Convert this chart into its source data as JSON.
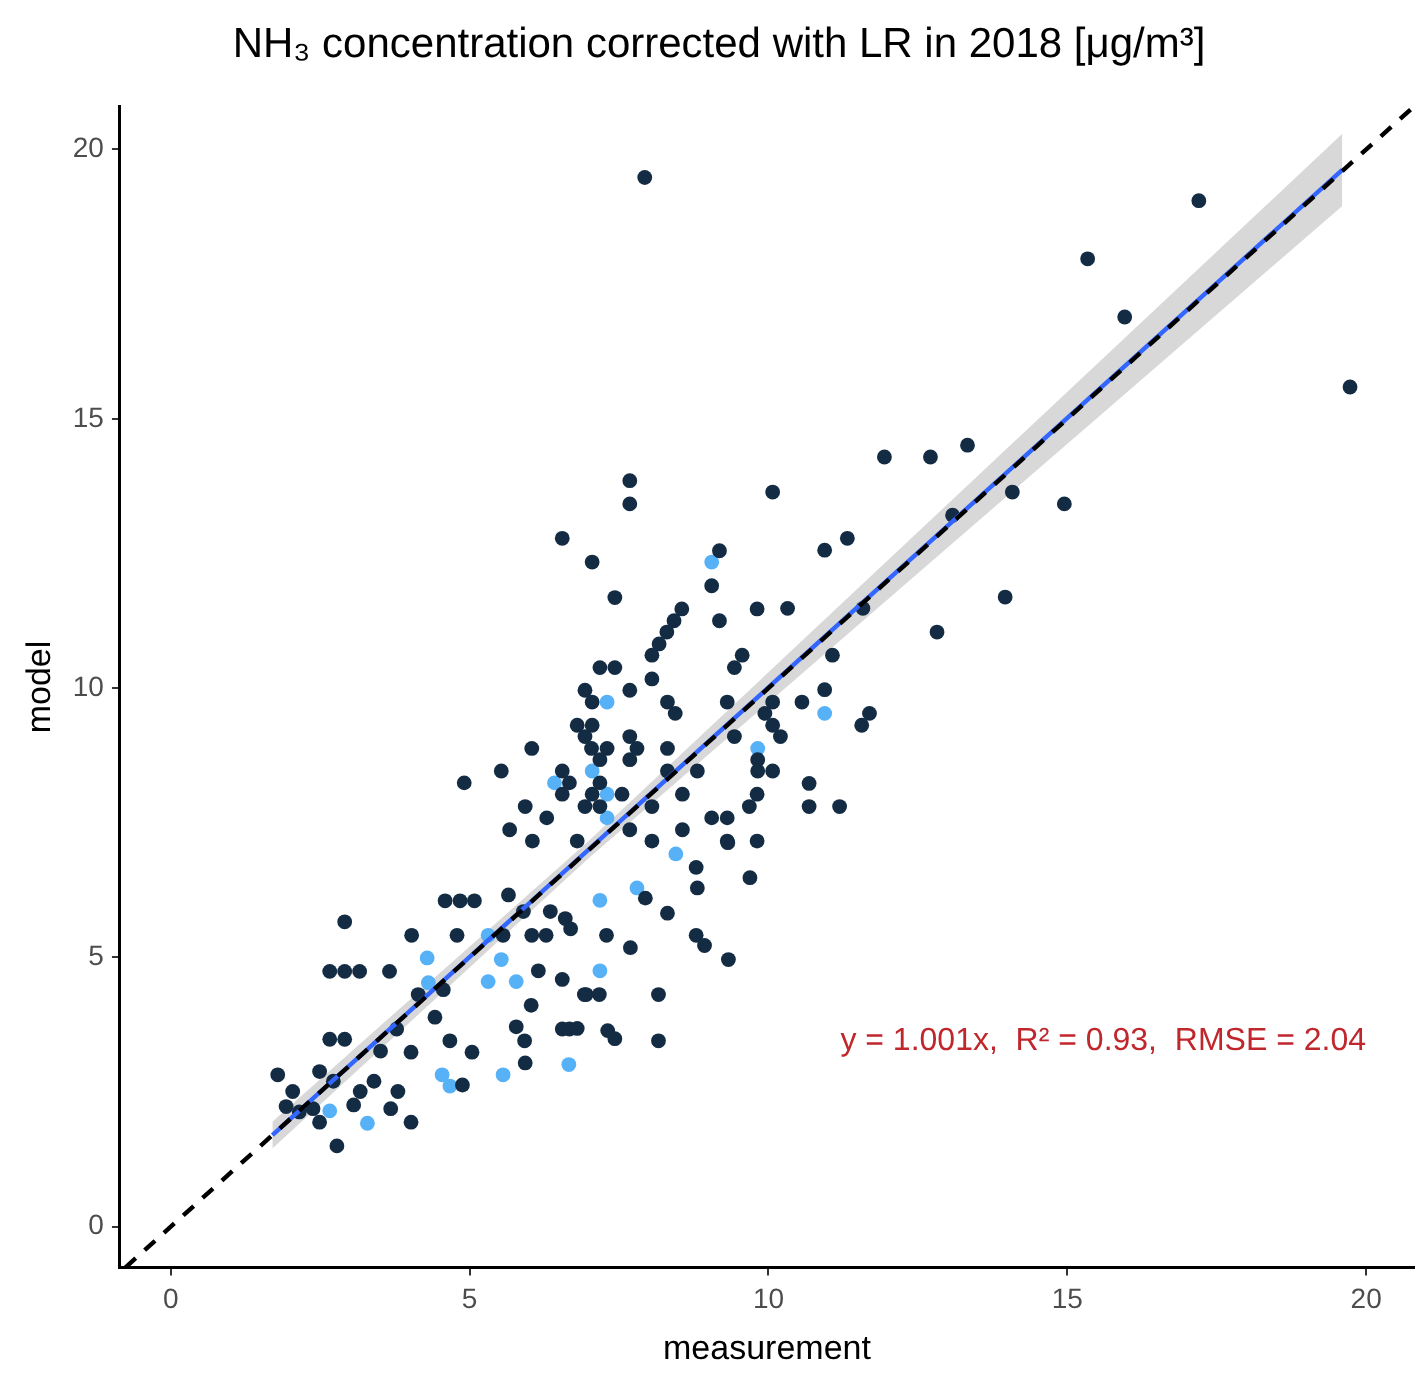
{
  "chart_data": {
    "type": "scatter",
    "title": "NH₃ concentration corrected with LR in 2018 [μg/m³]",
    "xlabel": "measurement",
    "ylabel": "model",
    "xlim": [
      -0.85,
      20.8
    ],
    "ylim": [
      -0.76,
      20.8
    ],
    "xticks": [
      0,
      5,
      10,
      15,
      20
    ],
    "yticks": [
      0,
      5,
      10,
      15,
      20
    ],
    "grid": false,
    "legend": false,
    "marker": "circle",
    "annotations": [
      "y = 1.001x,  R² = 0.93,  RMSE = 2.04"
    ],
    "series": [
      {
        "type": "line",
        "color": "#000000",
        "line_style": "dashed",
        "marker": "none",
        "x": [
          -0.76,
          20.8
        ],
        "values": [
          -0.76,
          20.8
        ]
      },
      {
        "type": "line",
        "color": "#3366ff",
        "line_style": "solid",
        "marker": "none",
        "x": [
          1.7,
          7,
          19.6
        ],
        "values": [
          1.7,
          7.01,
          19.62
        ],
        "lower": [
          1.45,
          6.85,
          18.95
        ],
        "upper": [
          1.95,
          7.17,
          20.29
        ]
      },
      {
        "color": "#132b43",
        "x": [
          17.2,
          15.34,
          15.96,
          19.73,
          11.94,
          12.71,
          13.33,
          14.08,
          14.95,
          13.08,
          10.94,
          11.32,
          10.32,
          11.58,
          13.96,
          12.82,
          11.07,
          10.94,
          10.56,
          11.69,
          11.56,
          10.2,
          10.68,
          11.19,
          7.93,
          7.68,
          7.68,
          10.07,
          6.55,
          7.05,
          9.18,
          9.05,
          7.43,
          9.18,
          9.81,
          8.55,
          8.42,
          8.3,
          8.17,
          8.05,
          9.56,
          9.43,
          7.18,
          7.43,
          8.05,
          6.93,
          7.68,
          7.05,
          8.31,
          8.44,
          9.31,
          10.07,
          9.94,
          10.07,
          6.8,
          7.05,
          6.93,
          7.68,
          7.04,
          7.3,
          7.8,
          8.31,
          9.43,
          6.04,
          7.68,
          7.18,
          9.82,
          9.82,
          10.07,
          5.53,
          4.91,
          6.55,
          6.67,
          7.18,
          8.31,
          8.81,
          8.56,
          7.55,
          6.55,
          7.05,
          9.81,
          5.93,
          6.93,
          7.18,
          8.05,
          9.05,
          9.31,
          9.68,
          10.68,
          5.67,
          6.29,
          8.56,
          8.05,
          9.31,
          9.81,
          6.8,
          6.05,
          7.68,
          4.84,
          4.59,
          5.08,
          5.65,
          5.9,
          6.35,
          6.6,
          6.69,
          6.04,
          6.28,
          2.91,
          4.03,
          4.79,
          5.56,
          2.66,
          2.91,
          3.16,
          3.66,
          4.56,
          6.15,
          6.55,
          6.95,
          4.14,
          4.42,
          3.78,
          2.66,
          2.91,
          3.51,
          4.02,
          4.67,
          5.04,
          6.03,
          5.78,
          5.92,
          6.55,
          6.67,
          6.8,
          5.93,
          4.88,
          1.79,
          2.04,
          1.93,
          2.49,
          2.72,
          3.17,
          3.4,
          3.06,
          3.8,
          3.68,
          2.38,
          2.49,
          4.02,
          2.78,
          2.15,
          9.69,
          8.79,
          8.81,
          9.32,
          8.31,
          8.79,
          8.93,
          9.33,
          7.69,
          7.29,
          7.94,
          8.16,
          6.92,
          7.17,
          7.31,
          7.43,
          8.16
        ],
        "values": [
          19.05,
          17.97,
          16.89,
          15.59,
          14.29,
          14.29,
          14.51,
          13.64,
          13.42,
          13.21,
          12.56,
          12.78,
          11.48,
          11.48,
          11.69,
          11.04,
          10.61,
          9.97,
          9.74,
          9.53,
          9.31,
          9.1,
          8.23,
          7.8,
          19.48,
          13.85,
          13.42,
          13.64,
          12.78,
          12.34,
          12.55,
          11.9,
          11.68,
          11.25,
          11.47,
          11.47,
          11.25,
          11.04,
          10.82,
          10.61,
          10.61,
          10.38,
          10.38,
          10.38,
          10.17,
          9.96,
          9.96,
          9.74,
          9.74,
          9.53,
          9.74,
          9.74,
          9.53,
          9.31,
          9.31,
          9.31,
          9.1,
          9.1,
          8.88,
          8.88,
          8.88,
          8.88,
          9.1,
          8.88,
          8.67,
          8.67,
          8.67,
          8.46,
          8.46,
          8.46,
          8.24,
          8.46,
          8.24,
          8.24,
          8.46,
          8.46,
          8.03,
          8.03,
          8.03,
          8.03,
          8.03,
          7.8,
          7.8,
          7.8,
          7.8,
          7.59,
          7.59,
          7.8,
          7.8,
          7.37,
          7.59,
          7.37,
          7.16,
          7.16,
          7.16,
          7.16,
          7.16,
          7.37,
          6.05,
          6.05,
          6.05,
          6.16,
          5.85,
          5.85,
          5.72,
          5.53,
          5.41,
          5.41,
          5.66,
          5.41,
          5.41,
          5.41,
          4.74,
          4.74,
          4.74,
          4.74,
          4.4,
          4.75,
          4.59,
          4.31,
          4.31,
          3.89,
          3.67,
          3.48,
          3.48,
          3.26,
          3.24,
          3.45,
          3.24,
          4.11,
          3.71,
          3.45,
          3.67,
          3.67,
          3.68,
          3.04,
          2.63,
          2.82,
          2.51,
          2.23,
          2.88,
          2.7,
          2.51,
          2.7,
          2.26,
          2.51,
          2.19,
          2.19,
          1.94,
          1.94,
          1.5,
          2.13,
          6.48,
          6.67,
          6.29,
          7.13,
          5.82,
          5.41,
          5.22,
          4.96,
          5.18,
          5.41,
          6.1,
          4.31,
          4.31,
          4.31,
          3.64,
          3.49,
          3.45
        ]
      },
      {
        "color": "#56b1f7",
        "x": [
          10.94,
          9.05,
          7.3,
          9.82,
          6.42,
          7.05,
          7.3,
          7.3,
          5.31,
          4.29,
          4.31,
          5.31,
          5.78,
          5.53,
          6.66,
          5.56,
          4.54,
          4.67,
          2.66,
          3.29,
          8.45,
          7.8,
          7.18,
          7.18
        ],
        "values": [
          9.53,
          12.34,
          9.74,
          8.88,
          8.24,
          8.46,
          8.03,
          7.59,
          5.41,
          4.99,
          4.53,
          4.55,
          4.55,
          4.96,
          3.01,
          2.82,
          2.82,
          2.61,
          2.15,
          1.92,
          6.92,
          6.29,
          6.06,
          4.75
        ]
      }
    ]
  }
}
